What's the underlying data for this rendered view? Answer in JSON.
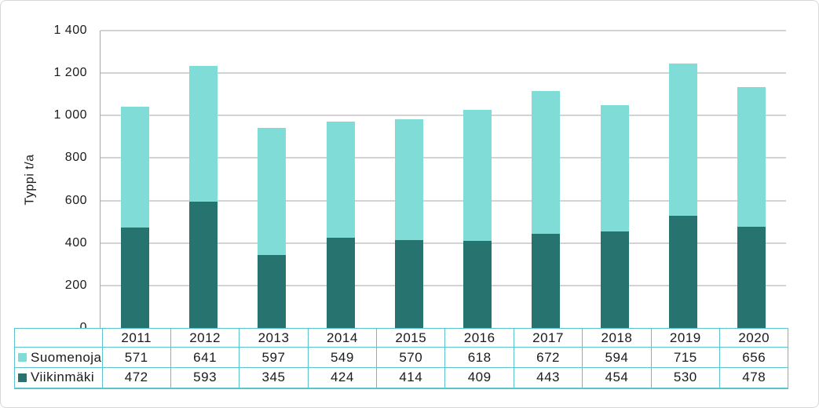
{
  "chart_data": {
    "type": "bar",
    "stacked": true,
    "title": "",
    "xlabel": "",
    "ylabel": "Typpi t/a",
    "ylim": [
      0,
      1400
    ],
    "grid": true,
    "legend_position": "table-left",
    "stack_order_bottom_to_top": [
      "Viikinmäki",
      "Suomenoja"
    ],
    "yticks": [
      {
        "value": 0,
        "label": "0"
      },
      {
        "value": 200,
        "label": "200"
      },
      {
        "value": 400,
        "label": "400"
      },
      {
        "value": 600,
        "label": "600"
      },
      {
        "value": 800,
        "label": "800"
      },
      {
        "value": 1000,
        "label": "1 000"
      },
      {
        "value": 1200,
        "label": "1 200"
      },
      {
        "value": 1400,
        "label": "1 400"
      }
    ],
    "categories": [
      "2011",
      "2012",
      "2013",
      "2014",
      "2015",
      "2016",
      "2017",
      "2018",
      "2019",
      "2020"
    ],
    "series": [
      {
        "name": "Suomenoja",
        "color": "#7FDCD6",
        "values": [
          571,
          641,
          597,
          549,
          570,
          618,
          672,
          594,
          715,
          656
        ]
      },
      {
        "name": "Viikinmäki",
        "color": "#277370",
        "values": [
          472,
          593,
          345,
          424,
          414,
          409,
          443,
          454,
          530,
          478
        ]
      }
    ]
  },
  "colors": {
    "suomenoja": "#7FDCD6",
    "viikinmaki": "#277370",
    "table_border": "#5AC3CD",
    "gridline": "#A7A7A7",
    "text": "#1B1B1B",
    "frame_border": "#D8D8D8",
    "background": "#FFFFFF"
  }
}
